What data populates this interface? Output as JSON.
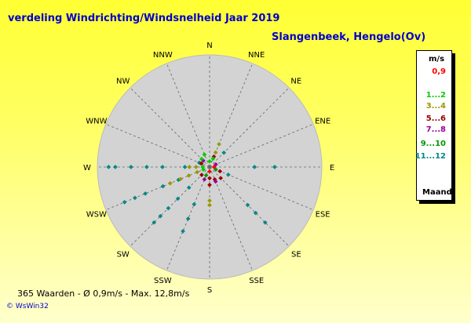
{
  "title": "verdeling Windrichting/Windsnelheid  Jaar 2019",
  "location": "Slangenbeek, Hengelo(Ov)",
  "footer": "365 Waarden   -   Ø 0,9m/s  -  Max. 12,8m/s",
  "credit": "© WsWin32",
  "legend": {
    "unit": "m/s",
    "footer": "Maand",
    "entries": [
      {
        "label": "0,9",
        "color": "#ff0000"
      },
      {
        "label": "1...2",
        "color": "#00cc00"
      },
      {
        "label": "3...4",
        "color": "#999900"
      },
      {
        "label": "5...6",
        "color": "#990000"
      },
      {
        "label": "7...8",
        "color": "#990099"
      },
      {
        "label": "9...10",
        "color": "#009900"
      },
      {
        "label": "11...12",
        "color": "#008888"
      }
    ]
  },
  "chart_data": {
    "type": "scatter",
    "directions": [
      "N",
      "NNE",
      "NE",
      "ENE",
      "E",
      "ESE",
      "SE",
      "SSE",
      "S",
      "SSW",
      "SW",
      "WSW",
      "W",
      "WNW",
      "NW",
      "NNW"
    ],
    "rings": 4,
    "series": [
      {
        "name": "11...12",
        "color": "#008888",
        "points": [
          {
            "dir": 292.5,
            "r": 0.1
          },
          {
            "dir": 270,
            "r": 0.22
          },
          {
            "dir": 270,
            "r": 0.42
          },
          {
            "dir": 270,
            "r": 0.56
          },
          {
            "dir": 270,
            "r": 0.7
          },
          {
            "dir": 270,
            "r": 0.84
          },
          {
            "dir": 270,
            "r": 0.9
          },
          {
            "dir": 247.5,
            "r": 0.3
          },
          {
            "dir": 247.5,
            "r": 0.45
          },
          {
            "dir": 247.5,
            "r": 0.62
          },
          {
            "dir": 247.5,
            "r": 0.72
          },
          {
            "dir": 247.5,
            "r": 0.82
          },
          {
            "dir": 225,
            "r": 0.26
          },
          {
            "dir": 225,
            "r": 0.4
          },
          {
            "dir": 225,
            "r": 0.52
          },
          {
            "dir": 225,
            "r": 0.62
          },
          {
            "dir": 225,
            "r": 0.7
          },
          {
            "dir": 202.5,
            "r": 0.36
          },
          {
            "dir": 202.5,
            "r": 0.5
          },
          {
            "dir": 202.5,
            "r": 0.62
          },
          {
            "dir": 135,
            "r": 0.48
          },
          {
            "dir": 135,
            "r": 0.58
          },
          {
            "dir": 135,
            "r": 0.7
          },
          {
            "dir": 90,
            "r": 0.4
          },
          {
            "dir": 90,
            "r": 0.58
          },
          {
            "dir": 45,
            "r": 0.18
          },
          {
            "dir": 112.5,
            "r": 0.18
          }
        ]
      },
      {
        "name": "3...4",
        "color": "#999900",
        "points": [
          {
            "dir": 247.5,
            "r": 0.12
          },
          {
            "dir": 247.5,
            "r": 0.2
          },
          {
            "dir": 247.5,
            "r": 0.28
          },
          {
            "dir": 247.5,
            "r": 0.38
          },
          {
            "dir": 270,
            "r": 0.12
          },
          {
            "dir": 270,
            "r": 0.18
          },
          {
            "dir": 180,
            "r": 0.3
          },
          {
            "dir": 180,
            "r": 0.34
          },
          {
            "dir": 22.5,
            "r": 0.14
          },
          {
            "dir": 22.5,
            "r": 0.22
          }
        ]
      },
      {
        "name": "5...6",
        "color": "#990000",
        "points": [
          {
            "dir": 225,
            "r": 0.1
          },
          {
            "dir": 180,
            "r": 0.1
          },
          {
            "dir": 180,
            "r": 0.16
          },
          {
            "dir": 157.5,
            "r": 0.12
          },
          {
            "dir": 135,
            "r": 0.14
          },
          {
            "dir": 112.5,
            "r": 0.1
          },
          {
            "dir": 292.5,
            "r": 0.08
          },
          {
            "dir": 22.5,
            "r": 0.1
          }
        ]
      },
      {
        "name": "7...8",
        "color": "#990099",
        "points": [
          {
            "dir": 157.5,
            "r": 0.14
          },
          {
            "dir": 202.5,
            "r": 0.12
          },
          {
            "dir": 315,
            "r": 0.08
          },
          {
            "dir": 67.5,
            "r": 0.06
          }
        ]
      },
      {
        "name": "1...2",
        "color": "#00cc00",
        "points": [
          {
            "dir": 315,
            "r": 0.1
          },
          {
            "dir": 337.5,
            "r": 0.12
          },
          {
            "dir": 22.5,
            "r": 0.08
          },
          {
            "dir": 270,
            "r": 0.06
          },
          {
            "dir": 247.5,
            "r": 0.06
          },
          {
            "dir": 0,
            "r": 0.05
          }
        ]
      },
      {
        "name": "9...10",
        "color": "#009900",
        "points": [
          {
            "dir": 202.5,
            "r": 0.08
          },
          {
            "dir": 112.5,
            "r": 0.06
          }
        ]
      },
      {
        "name": "0,9",
        "color": "#ff0000",
        "points": [
          {
            "dir": 180,
            "r": 0.04
          },
          {
            "dir": 90,
            "r": 0.04
          }
        ]
      }
    ]
  }
}
